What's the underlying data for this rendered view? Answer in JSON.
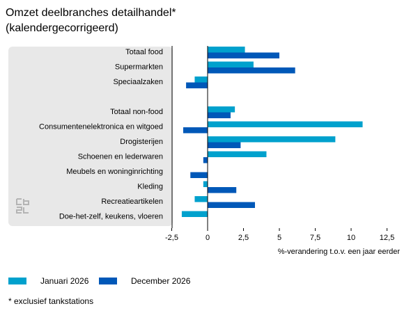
{
  "title_line1": "Omzet deelbranches detailhandel*",
  "title_line2": "(kalendergecorrigeerd)",
  "footnote": "* exclusief tankstations",
  "colors": {
    "series1": "#00a1cd",
    "series2": "#0058b8",
    "axis": "#000000",
    "panel": "#e8e8e8",
    "logo": "#b4b4b4"
  },
  "logo_icon": "cbs-logo-icon",
  "chart_data": {
    "type": "bar",
    "orientation": "horizontal",
    "title": "Omzet deelbranches detailhandel*",
    "subtitle": "(kalendergecorrigeerd)",
    "xlabel": "%-verandering t.o.v. een jaar eerder",
    "xlim": [
      -2.5,
      12.5
    ],
    "xticks": [
      "-2,5",
      "0",
      "2,5",
      "5",
      "7,5",
      "10",
      "12,5"
    ],
    "grid": false,
    "legend_position": "bottom",
    "categories": [
      "Totaal food",
      "Supermarkten",
      "Speciaalzaken",
      "",
      "Totaal non-food",
      "Consumentenelektronica en witgoed",
      "Drogisterijen",
      "Schoenen en lederwaren",
      "Meubels en woninginrichting",
      "Kleding",
      "Recreatieartikelen",
      "Doe-het-zelf, keukens, vloeren"
    ],
    "series": [
      {
        "name": "Januari 2026",
        "values": [
          2.6,
          3.2,
          -0.9,
          null,
          1.9,
          10.8,
          8.9,
          4.1,
          0,
          -0.3,
          -0.9,
          -1.8
        ]
      },
      {
        "name": "December 2026",
        "values": [
          5.0,
          6.1,
          -1.5,
          null,
          1.6,
          -1.7,
          2.3,
          -0.3,
          -1.2,
          2.0,
          3.3,
          0
        ]
      }
    ]
  }
}
